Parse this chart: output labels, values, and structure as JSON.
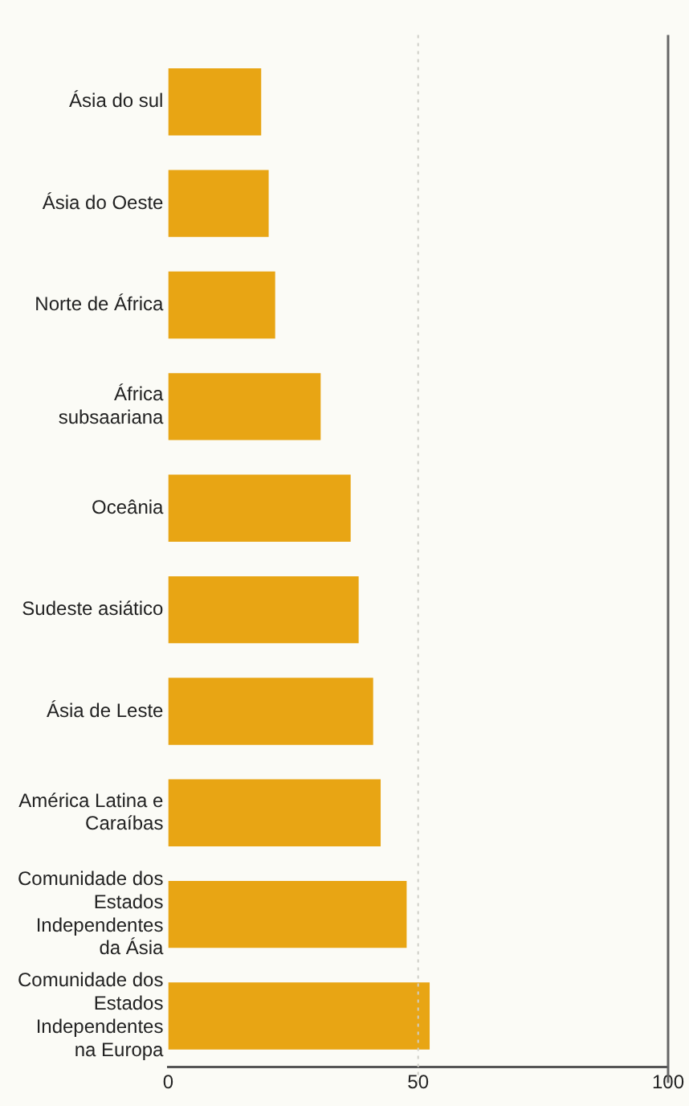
{
  "chart_data": {
    "type": "bar",
    "orientation": "horizontal",
    "categories": [
      "Ásia do sul",
      "Ásia do Oeste",
      "Norte de África",
      "África subsaariana",
      "Oceânia",
      "Sudeste asiático",
      "Ásia de Leste",
      "América Latina e Caraíbas",
      "Comunidade dos Estados Independentes da Ásia",
      "Comunidade dos Estados Independentes na Europa"
    ],
    "values": [
      18.6,
      20.1,
      21.4,
      30.5,
      36.5,
      38.1,
      41,
      42.5,
      47.7,
      52.3
    ],
    "color": "#e8a514",
    "xlim": [
      0,
      100
    ],
    "xticks": [
      0,
      50,
      100
    ],
    "grid": "x",
    "legend": false
  }
}
